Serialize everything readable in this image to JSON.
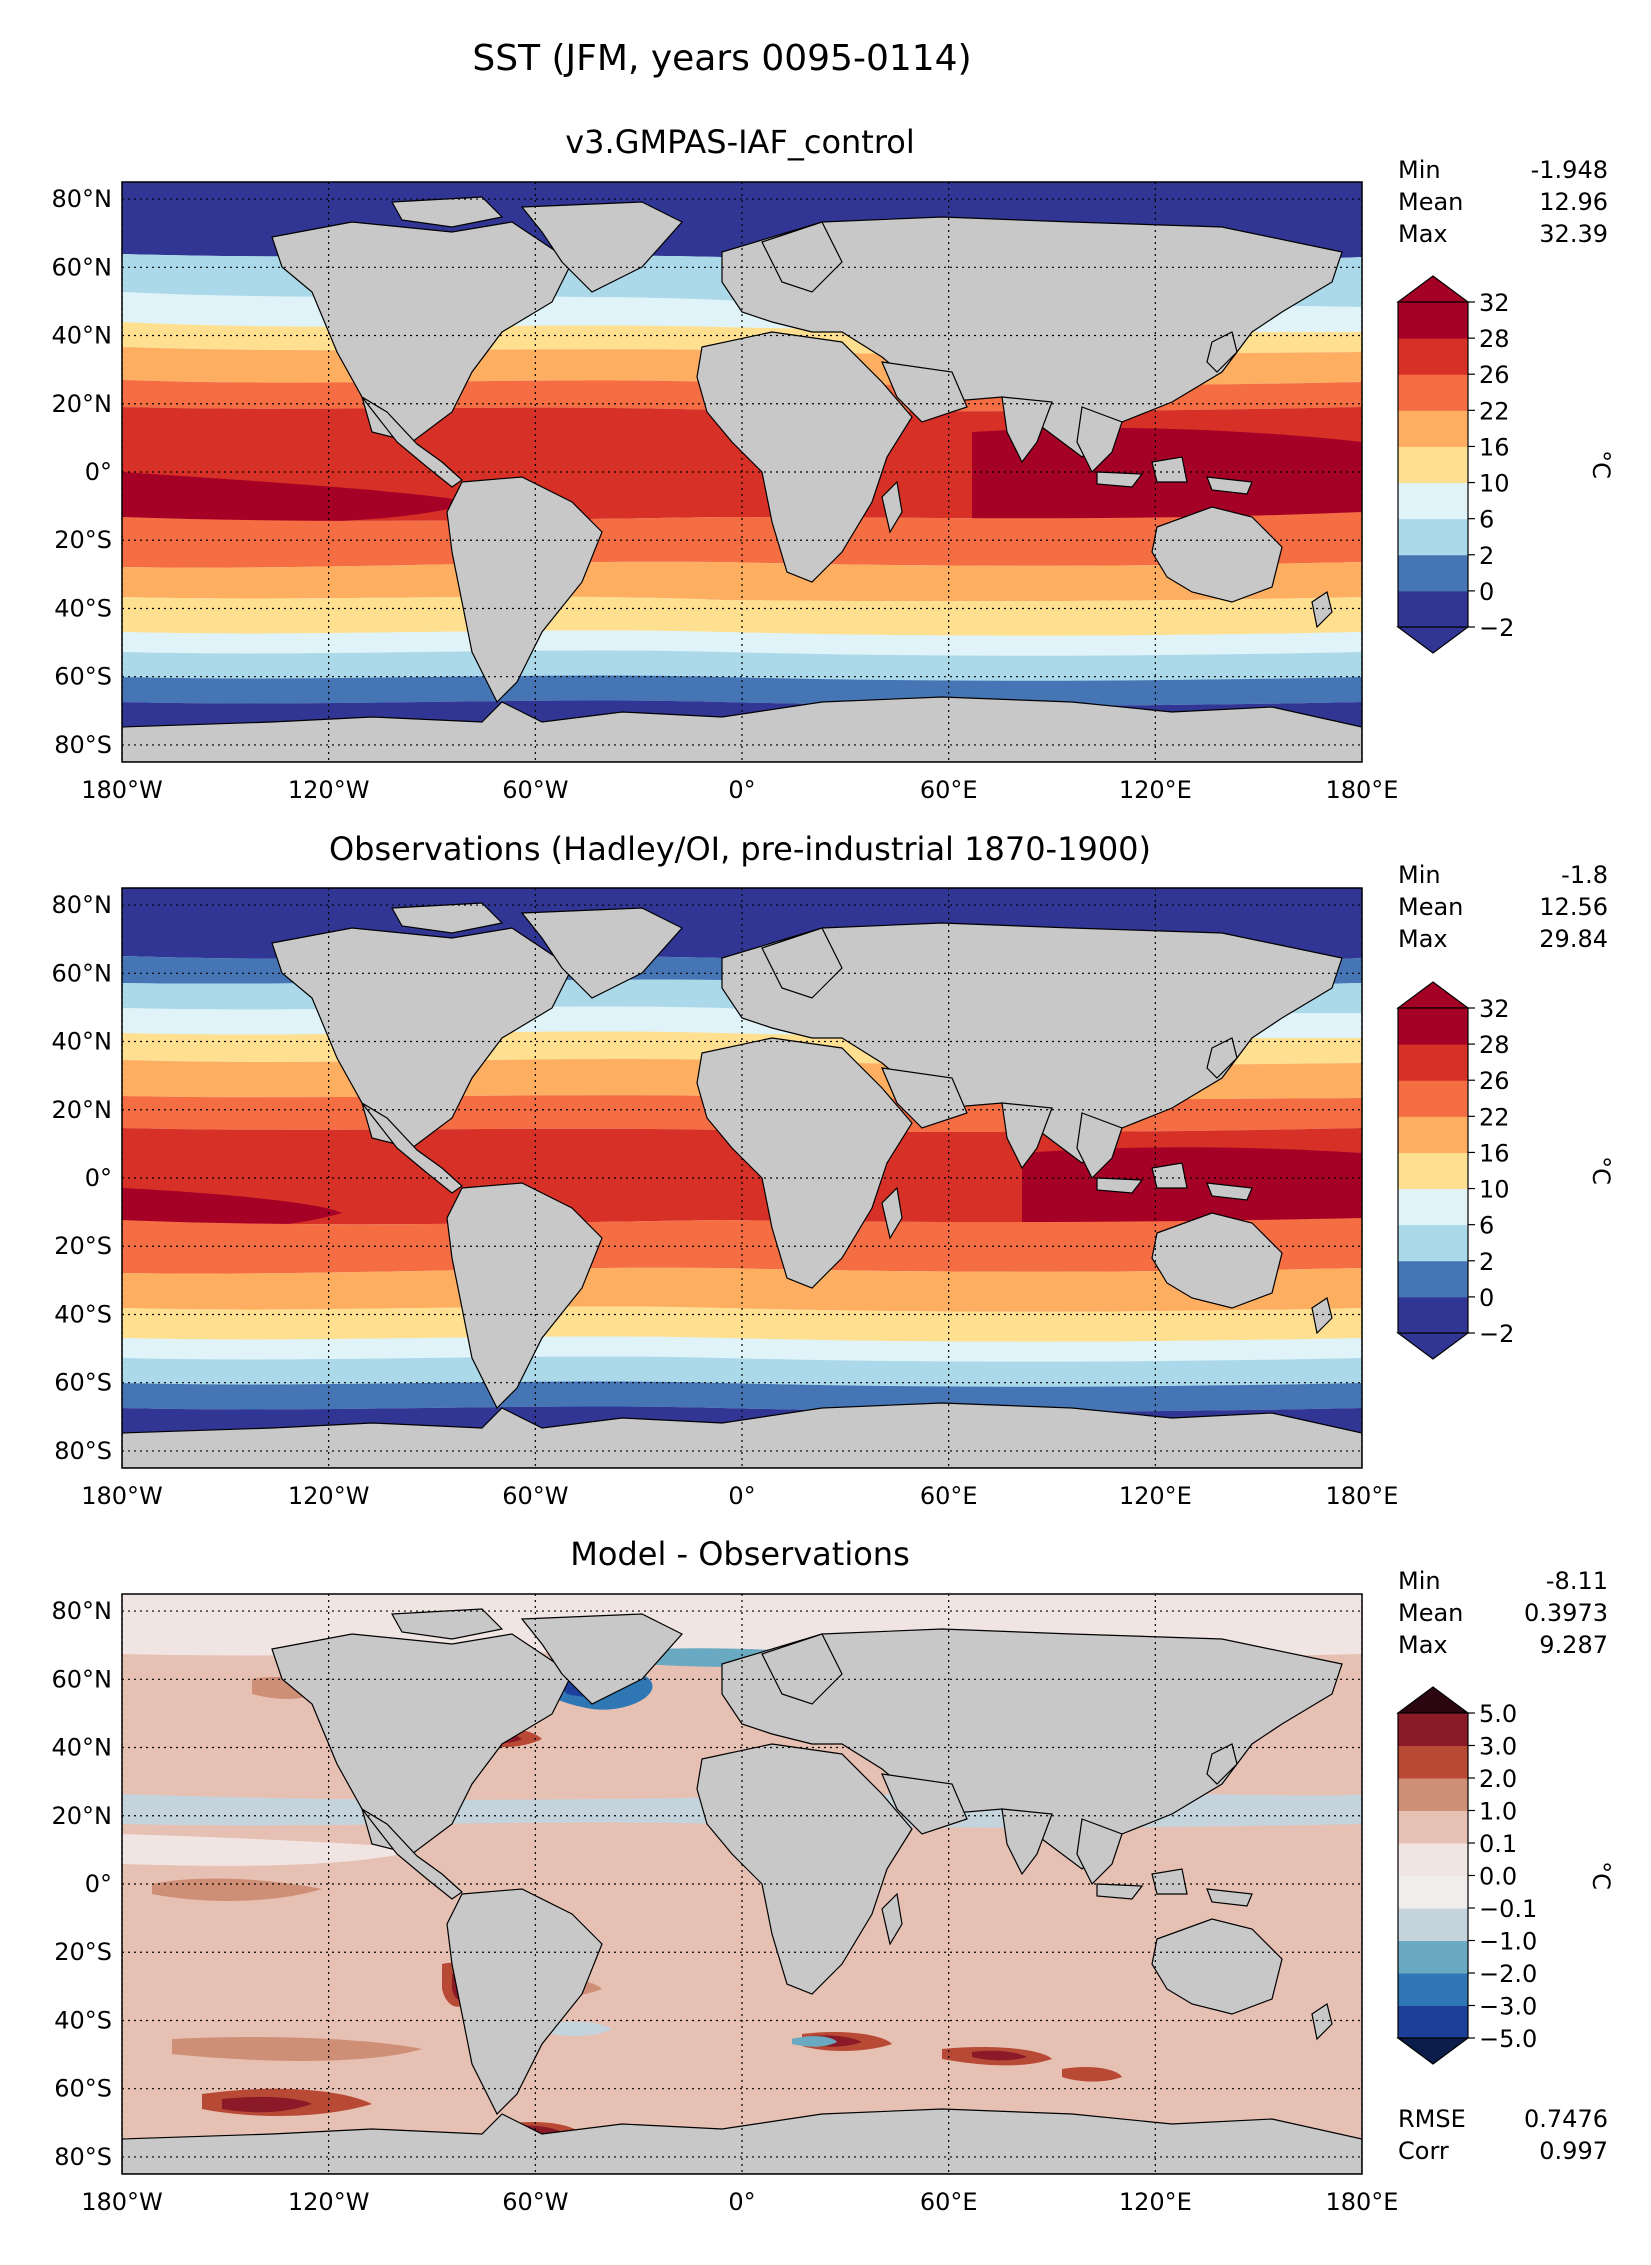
{
  "figure_title": "SST (JFM, years 0095-0114)",
  "chart_data": [
    {
      "type": "heatmap",
      "title": "v3.GMPAS-IAF_control",
      "x_ticks": [
        -180,
        -120,
        -60,
        0,
        60,
        120,
        180
      ],
      "x_tick_labels": [
        "180°W",
        "120°W",
        "60°W",
        "0°",
        "60°E",
        "120°E",
        "180°E"
      ],
      "y_ticks": [
        80,
        60,
        40,
        20,
        0,
        -20,
        -40,
        -60,
        -80
      ],
      "y_tick_labels": [
        "80°N",
        "60°N",
        "40°N",
        "20°N",
        "0°",
        "20°S",
        "40°S",
        "60°S",
        "80°S"
      ],
      "xlim": [
        -180,
        180
      ],
      "ylim": [
        -85,
        85
      ],
      "grid": true,
      "stats": [
        {
          "label": "Min",
          "value": "-1.948"
        },
        {
          "label": "Mean",
          "value": "12.96"
        },
        {
          "label": "Max",
          "value": "32.39"
        }
      ],
      "colorbar": {
        "unit": "°C",
        "levels": [
          "−2",
          "0",
          "2",
          "6",
          "10",
          "16",
          "22",
          "26",
          "28",
          "32"
        ],
        "colors": [
          "#313695",
          "#4575b4",
          "#abd9e9",
          "#e0f3f8",
          "#fee090",
          "#fdae61",
          "#f46d43",
          "#d73027",
          "#a50026"
        ],
        "under_color": "#313695",
        "over_color": "#a50026"
      }
    },
    {
      "type": "heatmap",
      "title": "Observations (Hadley/OI, pre-industrial 1870-1900)",
      "x_ticks": [
        -180,
        -120,
        -60,
        0,
        60,
        120,
        180
      ],
      "x_tick_labels": [
        "180°W",
        "120°W",
        "60°W",
        "0°",
        "60°E",
        "120°E",
        "180°E"
      ],
      "y_ticks": [
        80,
        60,
        40,
        20,
        0,
        -20,
        -40,
        -60,
        -80
      ],
      "y_tick_labels": [
        "80°N",
        "60°N",
        "40°N",
        "20°N",
        "0°",
        "20°S",
        "40°S",
        "60°S",
        "80°S"
      ],
      "xlim": [
        -180,
        180
      ],
      "ylim": [
        -85,
        85
      ],
      "grid": true,
      "stats": [
        {
          "label": "Min",
          "value": "-1.8"
        },
        {
          "label": "Mean",
          "value": "12.56"
        },
        {
          "label": "Max",
          "value": "29.84"
        }
      ],
      "colorbar": {
        "unit": "°C",
        "levels": [
          "−2",
          "0",
          "2",
          "6",
          "10",
          "16",
          "22",
          "26",
          "28",
          "32"
        ],
        "colors": [
          "#313695",
          "#4575b4",
          "#abd9e9",
          "#e0f3f8",
          "#fee090",
          "#fdae61",
          "#f46d43",
          "#d73027",
          "#a50026"
        ],
        "under_color": "#313695",
        "over_color": "#a50026"
      }
    },
    {
      "type": "heatmap",
      "title": "Model - Observations",
      "x_ticks": [
        -180,
        -120,
        -60,
        0,
        60,
        120,
        180
      ],
      "x_tick_labels": [
        "180°W",
        "120°W",
        "60°W",
        "0°",
        "60°E",
        "120°E",
        "180°E"
      ],
      "y_ticks": [
        80,
        60,
        40,
        20,
        0,
        -20,
        -40,
        -60,
        -80
      ],
      "y_tick_labels": [
        "80°N",
        "60°N",
        "40°N",
        "20°N",
        "0°",
        "20°S",
        "40°S",
        "60°S",
        "80°S"
      ],
      "xlim": [
        -180,
        180
      ],
      "ylim": [
        -85,
        85
      ],
      "grid": true,
      "stats": [
        {
          "label": "Min",
          "value": "-8.11"
        },
        {
          "label": "Mean",
          "value": "0.3973"
        },
        {
          "label": "Max",
          "value": "9.287"
        }
      ],
      "extra_stats": [
        {
          "label": "RMSE",
          "value": "0.7476"
        },
        {
          "label": "Corr",
          "value": "0.997"
        }
      ],
      "colorbar": {
        "unit": "°C",
        "levels": [
          "−5.0",
          "−3.0",
          "−2.0",
          "−1.0",
          "−0.1",
          "0.0",
          "0.1",
          "1.0",
          "2.0",
          "3.0",
          "5.0"
        ],
        "colors": [
          "#1d3f9a",
          "#2e76b4",
          "#6aa9c2",
          "#c5d3dc",
          "#f1eded",
          "#f1e5e3",
          "#e6c0b2",
          "#cf8e76",
          "#b84a35",
          "#8b1a28"
        ],
        "under_color": "#0b1d4a",
        "over_color": "#2b0510"
      }
    }
  ]
}
